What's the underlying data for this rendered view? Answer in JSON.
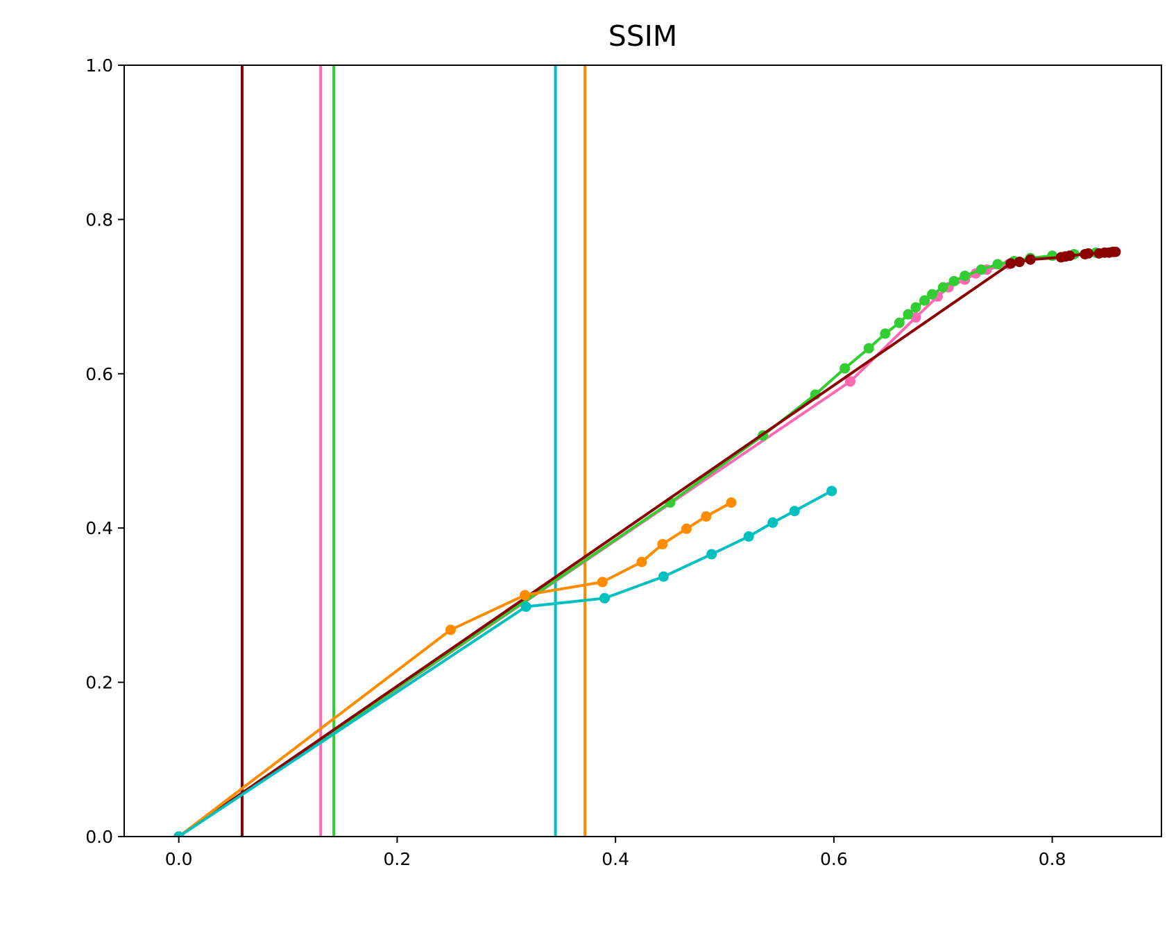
{
  "chart_data": {
    "type": "line",
    "title": "SSIM",
    "xlabel": "",
    "ylabel": "",
    "xlim": [
      -0.05,
      0.9
    ],
    "ylim": [
      0.0,
      1.0
    ],
    "xticks": [
      0.0,
      0.2,
      0.4,
      0.6,
      0.8
    ],
    "xtick_labels": [
      "0.0",
      "0.2",
      "0.4",
      "0.6",
      "0.8"
    ],
    "yticks": [
      0.0,
      0.2,
      0.4,
      0.6,
      0.8,
      1.0
    ],
    "ytick_labels": [
      "0.0",
      "0.2",
      "0.4",
      "0.6",
      "0.8",
      "1.0"
    ],
    "grid": false,
    "legend": "none",
    "series": [
      {
        "color": "#ff69b4",
        "vline": 0.13,
        "points": [
          [
            0.0,
            0.0
          ],
          [
            0.615,
            0.59
          ],
          [
            0.675,
            0.673
          ],
          [
            0.695,
            0.7
          ],
          [
            0.705,
            0.712
          ],
          [
            0.72,
            0.722
          ],
          [
            0.73,
            0.73
          ],
          [
            0.74,
            0.735
          ],
          [
            0.76,
            0.742
          ]
        ]
      },
      {
        "color": "#32cd32",
        "vline": 0.142,
        "points": [
          [
            0.0,
            0.0
          ],
          [
            0.45,
            0.433
          ],
          [
            0.535,
            0.52
          ],
          [
            0.583,
            0.573
          ],
          [
            0.61,
            0.607
          ],
          [
            0.632,
            0.633
          ],
          [
            0.647,
            0.652
          ],
          [
            0.66,
            0.666
          ],
          [
            0.668,
            0.677
          ],
          [
            0.675,
            0.686
          ],
          [
            0.683,
            0.695
          ],
          [
            0.69,
            0.703
          ],
          [
            0.7,
            0.712
          ],
          [
            0.71,
            0.72
          ],
          [
            0.72,
            0.727
          ],
          [
            0.735,
            0.735
          ],
          [
            0.75,
            0.742
          ],
          [
            0.765,
            0.746
          ],
          [
            0.78,
            0.75
          ],
          [
            0.8,
            0.753
          ],
          [
            0.82,
            0.755
          ],
          [
            0.84,
            0.757
          ],
          [
            0.855,
            0.758
          ]
        ]
      },
      {
        "color": "#8b0000",
        "vline": 0.058,
        "points": [
          [
            0.0,
            0.0
          ],
          [
            0.762,
            0.743
          ],
          [
            0.77,
            0.745
          ],
          [
            0.78,
            0.748
          ],
          [
            0.808,
            0.751
          ],
          [
            0.812,
            0.752
          ],
          [
            0.816,
            0.753
          ],
          [
            0.83,
            0.755
          ],
          [
            0.833,
            0.756
          ],
          [
            0.843,
            0.756
          ],
          [
            0.848,
            0.757
          ],
          [
            0.852,
            0.757
          ],
          [
            0.856,
            0.758
          ],
          [
            0.858,
            0.758
          ]
        ]
      },
      {
        "color": "#ff8c00",
        "vline": 0.372,
        "points": [
          [
            0.0,
            0.0
          ],
          [
            0.249,
            0.268
          ],
          [
            0.317,
            0.313
          ],
          [
            0.388,
            0.33
          ],
          [
            0.424,
            0.356
          ],
          [
            0.443,
            0.379
          ],
          [
            0.465,
            0.399
          ],
          [
            0.483,
            0.415
          ],
          [
            0.506,
            0.433
          ]
        ]
      },
      {
        "color": "#00bfbf",
        "vline": 0.345,
        "points": [
          [
            0.0,
            0.0
          ],
          [
            0.318,
            0.298
          ],
          [
            0.39,
            0.309
          ],
          [
            0.444,
            0.337
          ],
          [
            0.488,
            0.366
          ],
          [
            0.522,
            0.389
          ],
          [
            0.544,
            0.407
          ],
          [
            0.564,
            0.422
          ],
          [
            0.598,
            0.448
          ]
        ]
      }
    ]
  }
}
